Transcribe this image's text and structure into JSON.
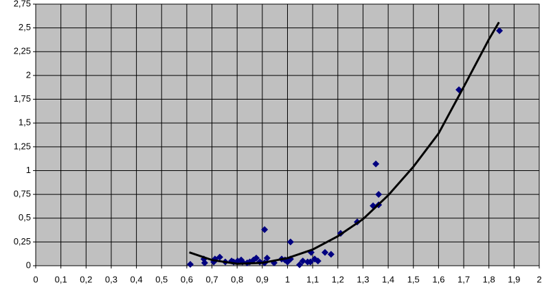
{
  "chart_data": {
    "type": "scatter",
    "plot_background": "#c0c0c0",
    "grid": true,
    "xlim": [
      0,
      2
    ],
    "xticks": [
      0,
      {
        "value": 0.1,
        "label": "0,1"
      },
      {
        "value": 0.2,
        "label": "0,2"
      },
      {
        "value": 0.3,
        "label": "0,3"
      },
      {
        "value": 0.4,
        "label": "0,4"
      },
      {
        "value": 0.5,
        "label": "0,5"
      },
      {
        "value": 0.6,
        "label": "0,6"
      },
      {
        "value": 0.7,
        "label": "0,7"
      },
      {
        "value": 0.8,
        "label": "0,8"
      },
      {
        "value": 0.9,
        "label": "0,9"
      },
      1,
      {
        "value": 1.1,
        "label": "1,1"
      },
      {
        "value": 1.2,
        "label": "1,2"
      },
      {
        "value": 1.3,
        "label": "1,3"
      },
      {
        "value": 1.4,
        "label": "1,4"
      },
      {
        "value": 1.5,
        "label": "1,5"
      },
      {
        "value": 1.6,
        "label": "1,6"
      },
      {
        "value": 1.7,
        "label": "1,7"
      },
      {
        "value": 1.8,
        "label": "1,8"
      },
      {
        "value": 1.9,
        "label": "1,9"
      },
      2
    ],
    "ylim": [
      0,
      2.75
    ],
    "yticks": [
      0,
      {
        "value": 0.25,
        "label": "0,25"
      },
      {
        "value": 0.5,
        "label": "0,5"
      },
      {
        "value": 0.75,
        "label": "0,75"
      },
      1,
      {
        "value": 1.25,
        "label": "1,25"
      },
      {
        "value": 1.5,
        "label": "1,5"
      },
      {
        "value": 1.75,
        "label": "1,75"
      },
      2,
      {
        "value": 2.25,
        "label": "2,25"
      },
      {
        "value": 2.5,
        "label": "2,5"
      },
      {
        "value": 2.75,
        "label": "2,75"
      }
    ],
    "series": [
      {
        "color": "#000080",
        "marker": "diamond",
        "x": [
          0.614,
          0.668,
          0.671,
          0.707,
          0.712,
          0.731,
          0.753,
          0.778,
          0.786,
          0.802,
          0.816,
          0.821,
          0.84,
          0.85,
          0.865,
          0.876,
          0.89,
          0.909,
          0.909,
          0.919,
          0.947,
          0.977,
          0.99,
          1.0,
          1.012,
          1.012,
          1.048,
          1.061,
          1.08,
          1.094,
          1.091,
          1.108,
          1.121,
          1.149,
          1.173,
          1.211,
          1.277,
          1.34,
          1.351,
          1.362,
          1.362,
          1.681,
          1.842
        ],
        "values": [
          0.014,
          0.07,
          0.03,
          0.04,
          0.07,
          0.09,
          0.04,
          0.05,
          0.04,
          0.05,
          0.06,
          0.04,
          0.03,
          0.04,
          0.06,
          0.08,
          0.04,
          0.38,
          0.03,
          0.08,
          0.03,
          0.07,
          0.06,
          0.04,
          0.25,
          0.07,
          0.01,
          0.05,
          0.04,
          0.14,
          0.04,
          0.07,
          0.05,
          0.14,
          0.12,
          0.34,
          0.46,
          0.63,
          1.07,
          0.75,
          0.64,
          1.85,
          2.47
        ]
      },
      {
        "color": "#000000",
        "marker": "line",
        "x": [
          0.61,
          0.7,
          0.8,
          0.9,
          1.0,
          1.1,
          1.2,
          1.3,
          1.4,
          1.5,
          1.6,
          1.7,
          1.8,
          1.84
        ],
        "values": [
          0.14,
          0.06,
          0.02,
          0.03,
          0.08,
          0.17,
          0.31,
          0.49,
          0.74,
          1.04,
          1.39,
          1.88,
          2.38,
          2.56
        ]
      }
    ]
  }
}
